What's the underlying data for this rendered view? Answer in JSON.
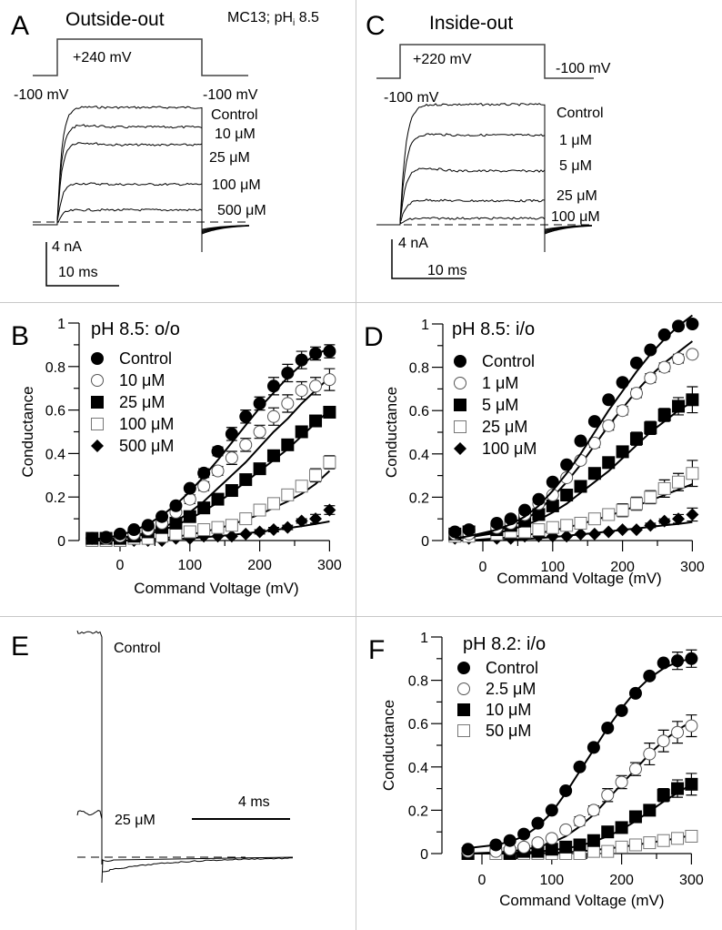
{
  "panels": {
    "A": {
      "letter": "A",
      "title": "Outside-out",
      "note": "MC13; pH",
      "note_sub": "i",
      "note_tail": " 8.5",
      "step_label": "+240 mV",
      "hold_left": "-100 mV",
      "hold_right": "-100 mV",
      "trace_labels": [
        "Control",
        "10 μM",
        "25 μM",
        "100 μM",
        "500 μM"
      ],
      "trace_levels_nA": [
        11.2,
        9.6,
        8.0,
        4.0,
        1.4
      ],
      "scale_current": "4 nA",
      "scale_time": "10 ms"
    },
    "C": {
      "letter": "C",
      "title": "Inside-out",
      "step_label": "+220 mV",
      "hold_left": "-100 mV",
      "hold_right": "-100 mV",
      "trace_labels": [
        "Control",
        "1 μM",
        "5 μM",
        "25 μM",
        "100 μM"
      ],
      "trace_levels_nA": [
        11.2,
        8.6,
        5.6,
        2.4,
        0.6
      ],
      "scale_current": "4 nA",
      "scale_time": "10 ms"
    },
    "E": {
      "letter": "E",
      "trace_labels": [
        "Control",
        "25 μM"
      ],
      "scale_time": "4 ms"
    }
  },
  "chart_data": [
    {
      "panel": "B",
      "type": "scatter",
      "title": "pH 8.5: o/o",
      "xlabel": "Command Voltage (mV)",
      "ylabel": "Conductance",
      "xlim": [
        -50,
        310
      ],
      "ylim": [
        0,
        1
      ],
      "xticks": [
        0,
        100,
        200,
        300
      ],
      "yticks": [
        0,
        0.2,
        0.4,
        0.6,
        0.8,
        1
      ],
      "ytick_labels": [
        "0",
        "0.2",
        "0.4",
        "0.6",
        "0.8",
        "1"
      ],
      "legend_position": "top-left",
      "x": [
        -40,
        -20,
        0,
        20,
        40,
        60,
        80,
        100,
        120,
        140,
        160,
        180,
        200,
        220,
        240,
        260,
        280,
        300
      ],
      "series": [
        {
          "name": "Control",
          "marker": "filled-circle",
          "values": [
            0.01,
            0.015,
            0.03,
            0.05,
            0.07,
            0.11,
            0.16,
            0.24,
            0.31,
            0.41,
            0.49,
            0.57,
            0.63,
            0.71,
            0.77,
            0.83,
            0.86,
            0.87
          ],
          "errors": [
            0,
            0,
            0,
            0,
            0,
            0,
            0,
            0.01,
            0.02,
            0.02,
            0.03,
            0.03,
            0.03,
            0.04,
            0.04,
            0.04,
            0.03,
            0.03
          ],
          "fit": [
            0.005,
            0.012,
            0.025,
            0.045,
            0.075,
            0.115,
            0.165,
            0.225,
            0.295,
            0.37,
            0.45,
            0.53,
            0.61,
            0.68,
            0.75,
            0.81,
            0.855,
            0.885
          ]
        },
        {
          "name": "10 μM",
          "marker": "open-circle",
          "values": [
            0.01,
            0.01,
            0.02,
            0.03,
            0.05,
            0.08,
            0.13,
            0.19,
            0.25,
            0.32,
            0.38,
            0.44,
            0.5,
            0.57,
            0.63,
            0.69,
            0.71,
            0.74
          ],
          "errors": [
            0,
            0,
            0,
            0,
            0,
            0,
            0.01,
            0.02,
            0.02,
            0.02,
            0.03,
            0.03,
            0.03,
            0.04,
            0.04,
            0.04,
            0.04,
            0.05
          ],
          "fit": [
            0.003,
            0.006,
            0.012,
            0.022,
            0.037,
            0.058,
            0.088,
            0.13,
            0.18,
            0.24,
            0.3,
            0.36,
            0.43,
            0.5,
            0.56,
            0.63,
            0.69,
            0.75
          ]
        },
        {
          "name": "25 μM",
          "marker": "filled-square",
          "values": [
            0.01,
            0.01,
            0.01,
            0.02,
            0.04,
            0.06,
            0.08,
            0.11,
            0.15,
            0.19,
            0.23,
            0.28,
            0.33,
            0.39,
            0.44,
            0.5,
            0.55,
            0.59
          ],
          "errors": [
            0,
            0,
            0,
            0,
            0,
            0,
            0,
            0,
            0,
            0,
            0.01,
            0.01,
            0.01,
            0.02,
            0.02,
            0.02,
            0.02,
            0.02
          ],
          "fit": [
            0,
            0.004,
            0.01,
            0.018,
            0.03,
            0.047,
            0.07,
            0.1,
            0.135,
            0.175,
            0.22,
            0.27,
            0.32,
            0.37,
            0.42,
            0.48,
            0.54,
            0.6
          ]
        },
        {
          "name": "100 μM",
          "marker": "open-square",
          "values": [
            0.0,
            0.0,
            0.0,
            0.01,
            0.01,
            0.02,
            0.03,
            0.04,
            0.05,
            0.06,
            0.07,
            0.1,
            0.14,
            0.17,
            0.21,
            0.25,
            0.3,
            0.36
          ],
          "errors": [
            0,
            0,
            0,
            0,
            0,
            0,
            0,
            0.01,
            0.01,
            0.01,
            0.02,
            0.02,
            0.02,
            0.02,
            0.02,
            0.02,
            0.03,
            0.03
          ],
          "fit": [
            0,
            0,
            0,
            0.002,
            0.005,
            0.01,
            0.017,
            0.027,
            0.04,
            0.055,
            0.074,
            0.096,
            0.12,
            0.15,
            0.18,
            0.215,
            0.26,
            0.32
          ]
        },
        {
          "name": "500 μM",
          "marker": "filled-diamond",
          "values": [
            0.0,
            0.0,
            0.0,
            0.0,
            0.0,
            0.0,
            0.01,
            0.01,
            0.02,
            0.02,
            0.02,
            0.03,
            0.04,
            0.05,
            0.06,
            0.09,
            0.1,
            0.14
          ],
          "errors": [
            0,
            0,
            0,
            0,
            0,
            0,
            0,
            0,
            0,
            0,
            0,
            0,
            0.01,
            0.01,
            0.01,
            0.01,
            0.02,
            0.02
          ],
          "fit": [
            0,
            0,
            0,
            0,
            0.001,
            0.003,
            0.006,
            0.01,
            0.015,
            0.02,
            0.026,
            0.033,
            0.04,
            0.048,
            0.057,
            0.066,
            0.076,
            0.088
          ]
        }
      ]
    },
    {
      "panel": "D",
      "type": "scatter",
      "title": "pH 8.5: i/o",
      "xlabel": "Command Voltage (mV)",
      "ylabel": "Conductance",
      "xlim": [
        -50,
        310
      ],
      "ylim": [
        0,
        1
      ],
      "xticks": [
        0,
        100,
        200,
        300
      ],
      "yticks": [
        0,
        0.2,
        0.4,
        0.6,
        0.8,
        1
      ],
      "ytick_labels": [
        "0",
        "0.2",
        "0.4",
        "0.6",
        "0.8",
        "1"
      ],
      "legend_position": "top-left",
      "x": [
        -40,
        -20,
        0,
        20,
        40,
        60,
        80,
        100,
        120,
        140,
        160,
        180,
        200,
        220,
        240,
        260,
        280,
        300
      ],
      "series": [
        {
          "name": "Control",
          "marker": "filled-circle",
          "values": [
            0.04,
            0.05,
            null,
            0.08,
            0.1,
            0.14,
            0.19,
            0.27,
            0.35,
            0.46,
            0.55,
            0.65,
            0.73,
            0.82,
            0.88,
            0.95,
            0.99,
            1.0
          ],
          "errors": [
            0,
            0,
            0,
            0,
            0,
            0,
            0,
            0,
            0,
            0,
            0,
            0,
            0.01,
            0.01,
            0.01,
            0.01,
            0,
            0
          ],
          "fit": [
            0.01,
            0.02,
            0.035,
            0.05,
            0.075,
            0.11,
            0.16,
            0.23,
            0.31,
            0.4,
            0.5,
            0.6,
            0.69,
            0.78,
            0.86,
            0.93,
            0.99,
            1.04
          ]
        },
        {
          "name": "1 μM",
          "marker": "open-circle",
          "values": [
            0.03,
            0.03,
            null,
            0.06,
            0.08,
            0.12,
            0.17,
            0.21,
            0.29,
            0.37,
            0.45,
            0.53,
            0.6,
            0.68,
            0.75,
            0.8,
            0.84,
            0.86
          ],
          "errors": [
            0,
            0,
            0,
            0,
            0,
            0,
            0,
            0.01,
            0.01,
            0.01,
            0.02,
            0.02,
            0.02,
            0.02,
            0.02,
            0.02,
            0.02,
            0.01
          ],
          "fit": [
            0.01,
            0.018,
            0.03,
            0.045,
            0.065,
            0.095,
            0.14,
            0.2,
            0.27,
            0.35,
            0.44,
            0.53,
            0.61,
            0.69,
            0.76,
            0.82,
            0.87,
            0.92
          ]
        },
        {
          "name": "5 μM",
          "marker": "filled-square",
          "values": [
            0.03,
            0.04,
            null,
            0.05,
            0.07,
            0.09,
            0.12,
            0.16,
            0.21,
            0.25,
            0.31,
            0.36,
            0.41,
            0.47,
            0.52,
            0.58,
            0.62,
            0.65
          ],
          "errors": [
            0,
            0,
            0,
            0,
            0,
            0,
            0,
            0,
            0,
            0,
            0,
            0,
            0.02,
            0.03,
            0.03,
            0.03,
            0.04,
            0.06
          ],
          "fit": [
            0.01,
            0.015,
            0.025,
            0.035,
            0.05,
            0.07,
            0.095,
            0.13,
            0.17,
            0.22,
            0.27,
            0.32,
            0.38,
            0.44,
            0.5,
            0.55,
            0.6,
            0.64
          ]
        },
        {
          "name": "25 μM",
          "marker": "open-square",
          "values": [
            0.02,
            0.02,
            null,
            0.03,
            0.04,
            0.04,
            0.05,
            0.06,
            0.07,
            0.08,
            0.1,
            0.12,
            0.14,
            0.17,
            0.2,
            0.24,
            0.27,
            0.31
          ],
          "errors": [
            0,
            0,
            0,
            0,
            0,
            0,
            0.01,
            0.01,
            0.01,
            0.01,
            0.02,
            0.02,
            0.03,
            0.03,
            0.03,
            0.04,
            0.04,
            0.06
          ],
          "fit": [
            0,
            0,
            0.005,
            0.01,
            0.016,
            0.024,
            0.034,
            0.046,
            0.06,
            0.076,
            0.094,
            0.114,
            0.136,
            0.16,
            0.185,
            0.21,
            0.235,
            0.26
          ]
        },
        {
          "name": "100 μM",
          "marker": "filled-diamond",
          "values": [
            0.01,
            0.01,
            null,
            0.01,
            0.01,
            0.02,
            0.02,
            0.02,
            0.02,
            0.03,
            0.03,
            0.04,
            0.05,
            0.05,
            0.07,
            0.09,
            0.1,
            0.12
          ],
          "errors": [
            0,
            0,
            0,
            0,
            0,
            0,
            0,
            0,
            0,
            0,
            0,
            0,
            0,
            0,
            0.01,
            0.01,
            0.02,
            0.03
          ],
          "fit": [
            0,
            0,
            0,
            0.002,
            0.004,
            0.007,
            0.011,
            0.016,
            0.022,
            0.028,
            0.035,
            0.042,
            0.049,
            0.056,
            0.063,
            0.07,
            0.077,
            0.085
          ]
        }
      ]
    },
    {
      "panel": "F",
      "type": "scatter",
      "title": "pH 8.2: i/o",
      "xlabel": "Command Voltage (mV)",
      "ylabel": "Conductance",
      "xlim": [
        -40,
        310
      ],
      "ylim": [
        0,
        1
      ],
      "xticks": [
        0,
        100,
        200,
        300
      ],
      "yticks": [
        0,
        0.2,
        0.4,
        0.6,
        0.8,
        1
      ],
      "ytick_labels": [
        "0",
        "0.2",
        "0.4",
        "0.6",
        "0.8",
        "1"
      ],
      "legend_position": "top-left",
      "x": [
        -20,
        20,
        40,
        60,
        80,
        100,
        120,
        140,
        160,
        180,
        200,
        220,
        240,
        260,
        280,
        300
      ],
      "series": [
        {
          "name": "Control",
          "marker": "filled-circle",
          "values": [
            0.02,
            0.04,
            0.06,
            0.09,
            0.14,
            0.2,
            0.29,
            0.4,
            0.49,
            0.58,
            0.66,
            0.74,
            0.82,
            0.88,
            0.89,
            0.9
          ],
          "errors": [
            0,
            0,
            0,
            0,
            0,
            0,
            0,
            0,
            0,
            0,
            0,
            0,
            0,
            0,
            0.04,
            0.04
          ],
          "fit": [
            0.025,
            0.04,
            0.055,
            0.08,
            0.125,
            0.19,
            0.28,
            0.38,
            0.48,
            0.58,
            0.67,
            0.75,
            0.81,
            0.855,
            0.885,
            0.9
          ]
        },
        {
          "name": "2.5 μM",
          "marker": "open-circle",
          "values": [
            0.01,
            0.01,
            0.02,
            0.03,
            0.05,
            0.07,
            0.11,
            0.15,
            0.2,
            0.27,
            0.33,
            0.39,
            0.46,
            0.52,
            0.56,
            0.59
          ],
          "errors": [
            0,
            0,
            0,
            0,
            0,
            0.01,
            0.01,
            0.02,
            0.02,
            0.03,
            0.03,
            0.03,
            0.05,
            0.05,
            0.05,
            0.05
          ],
          "fit": [
            0,
            0.005,
            0.01,
            0.018,
            0.03,
            0.05,
            0.08,
            0.125,
            0.18,
            0.25,
            0.32,
            0.39,
            0.46,
            0.52,
            0.57,
            0.61
          ]
        },
        {
          "name": "10 μM",
          "marker": "filled-square",
          "values": [
            0.0,
            null,
            0.0,
            0.01,
            0.01,
            0.02,
            0.03,
            0.04,
            0.06,
            0.1,
            0.12,
            0.17,
            0.2,
            0.27,
            0.3,
            0.32
          ],
          "errors": [
            0,
            0,
            0,
            0,
            0,
            0,
            0,
            0,
            0,
            0,
            0,
            0,
            0,
            0.03,
            0.04,
            0.05
          ],
          "fit": [
            0,
            0,
            0.002,
            0.005,
            0.009,
            0.015,
            0.024,
            0.036,
            0.055,
            0.08,
            0.11,
            0.15,
            0.195,
            0.24,
            0.28,
            0.32
          ]
        },
        {
          "name": "50 μM",
          "marker": "open-square",
          "values": [
            0.0,
            0.0,
            0.0,
            0.0,
            0.0,
            0.0,
            0.0,
            0.0,
            0.01,
            0.01,
            0.03,
            0.04,
            0.05,
            0.06,
            0.07,
            0.08
          ],
          "errors": [
            0,
            0,
            0,
            0,
            0,
            0,
            0,
            0,
            0,
            0,
            0,
            0,
            0.01,
            0.01,
            0.02,
            0.02
          ],
          "fit": [
            0,
            0,
            0,
            0,
            0.001,
            0.003,
            0.006,
            0.01,
            0.016,
            0.023,
            0.031,
            0.04,
            0.05,
            0.06,
            0.071,
            0.085
          ]
        }
      ]
    }
  ]
}
